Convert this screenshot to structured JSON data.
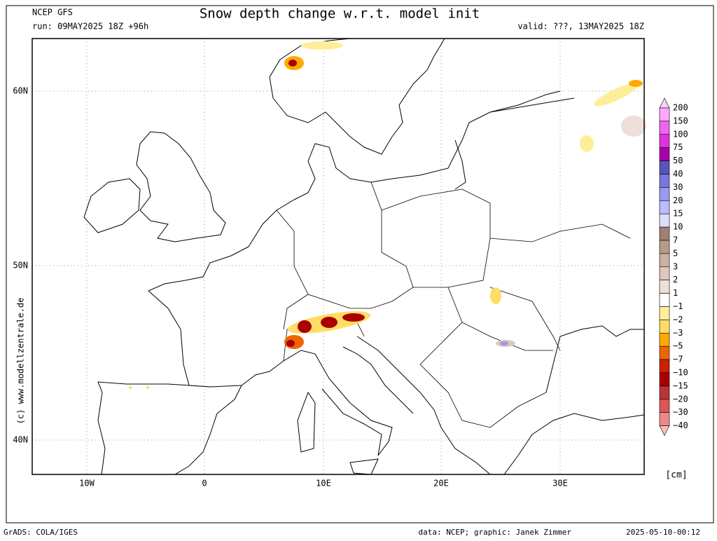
{
  "header": {
    "model": "NCEP GFS",
    "title": "Snow depth change w.r.t. model init",
    "run": "run: 09MAY2025 18Z +96h",
    "valid": "valid: ???, 13MAY2025 18Z"
  },
  "axes": {
    "lat_labels": [
      "60N",
      "50N",
      "40N"
    ],
    "lon_labels": [
      "10W",
      "0",
      "10E",
      "20E",
      "30E"
    ]
  },
  "colorbar": {
    "labels": [
      "200",
      "150",
      "100",
      "75",
      "50",
      "40",
      "30",
      "20",
      "15",
      "10",
      "7",
      "5",
      "3",
      "2",
      "1",
      "−1",
      "−2",
      "−3",
      "−5",
      "−7",
      "−10",
      "−15",
      "−20",
      "−30",
      "−40"
    ],
    "colors": [
      "#ffd0ff",
      "#ffa8ff",
      "#ee66ee",
      "#dd33dd",
      "#aa00aa",
      "#5555bb",
      "#7777dd",
      "#9999ee",
      "#bbbbff",
      "#ddddff",
      "#a08070",
      "#b89a8a",
      "#ccb0a0",
      "#ddc8bb",
      "#eee0d8",
      "#ffffff",
      "#ffee99",
      "#ffdd66",
      "#ffaa00",
      "#ee6600",
      "#cc2200",
      "#aa0000",
      "#bb3333",
      "#dd5555",
      "#ee8888",
      "#ffbbbb"
    ],
    "unit": "[cm]"
  },
  "watermark": "(c) www.modellzentrale.de",
  "footer": {
    "software": "GrADS: COLA/IGES",
    "credit": "data: NCEP; graphic: Janek Zimmer",
    "timestamp": "2025-05-10-00:12"
  }
}
